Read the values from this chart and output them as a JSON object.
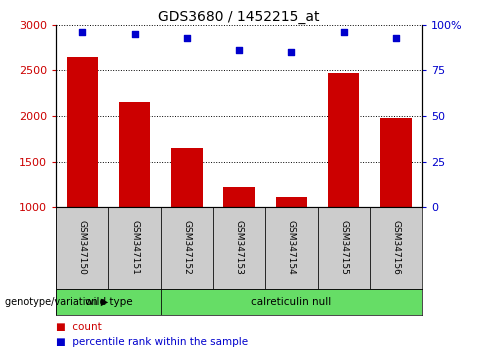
{
  "title": "GDS3680 / 1452215_at",
  "samples": [
    "GSM347150",
    "GSM347151",
    "GSM347152",
    "GSM347153",
    "GSM347154",
    "GSM347155",
    "GSM347156"
  ],
  "counts": [
    2650,
    2150,
    1650,
    1220,
    1110,
    2470,
    1980
  ],
  "percentiles": [
    96,
    95,
    93,
    86,
    85,
    96,
    93
  ],
  "ylim_left": [
    1000,
    3000
  ],
  "ylim_right": [
    0,
    100
  ],
  "yticks_left": [
    1000,
    1500,
    2000,
    2500,
    3000
  ],
  "yticks_right": [
    0,
    25,
    50,
    75,
    100
  ],
  "yticklabels_right": [
    "0",
    "25",
    "50",
    "75",
    "100%"
  ],
  "bar_color": "#cc0000",
  "scatter_color": "#0000cc",
  "bar_width": 0.6,
  "groups": [
    {
      "label": "wild type",
      "start": 0,
      "end": 2
    },
    {
      "label": "calreticulin null",
      "start": 2,
      "end": 7
    }
  ],
  "group_color": "#66dd66",
  "sample_box_color": "#cccccc",
  "legend_count_color": "#cc0000",
  "legend_percentile_color": "#0000cc",
  "genotype_label": "genotype/variation",
  "legend_count_label": "count",
  "legend_percentile_label": "percentile rank within the sample"
}
